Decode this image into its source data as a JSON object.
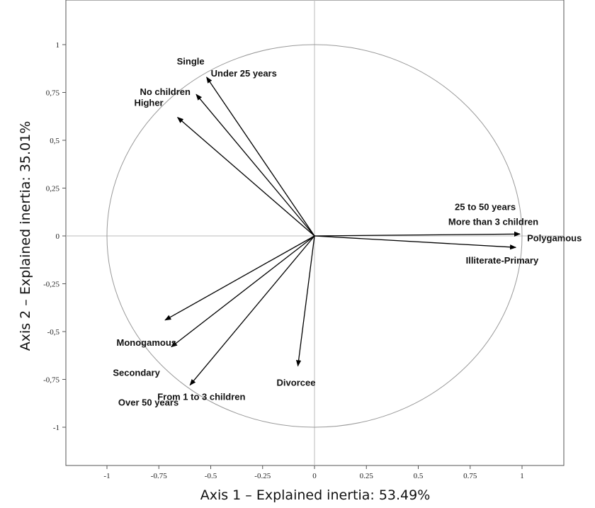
{
  "chart_data": {
    "type": "scatter",
    "subtype": "correlation-circle",
    "title": "",
    "xlabel": "Axis 1 – Explained inertia: 53.49%",
    "ylabel": "Axis 2 – Explained inertia: 35.01%",
    "xlim": [
      -1.2,
      1.2
    ],
    "ylim": [
      -1.2,
      1.2
    ],
    "x_ticks": [
      "-1",
      "-0.75",
      "-0.5",
      "-0.25",
      "0",
      "0.25",
      "0.5",
      "0.75",
      "1"
    ],
    "y_ticks": [
      "1",
      "0,75",
      "0,5",
      "0,25",
      "0",
      "-0,25",
      "-0,5",
      "-0,75",
      "-1"
    ],
    "unit_circle": true,
    "grid": false,
    "vectors": [
      {
        "label": "Single",
        "x": -0.52,
        "y": 0.83
      },
      {
        "label": "Under 25 years",
        "x": -0.52,
        "y": 0.83
      },
      {
        "label": "No children",
        "x": -0.57,
        "y": 0.74
      },
      {
        "label": "Higher",
        "x": -0.66,
        "y": 0.62
      },
      {
        "label": "25 to 50 years",
        "x": 0.99,
        "y": 0.01
      },
      {
        "label": "More than 3 children",
        "x": 0.99,
        "y": 0.01
      },
      {
        "label": "Polygamous",
        "x": 0.99,
        "y": 0.01
      },
      {
        "label": "Illiterate-Primary",
        "x": 0.97,
        "y": -0.06
      },
      {
        "label": "Monogamous",
        "x": -0.72,
        "y": -0.44
      },
      {
        "label": "Secondary",
        "x": -0.69,
        "y": -0.58
      },
      {
        "label": "Over 50 years",
        "x": -0.6,
        "y": -0.78
      },
      {
        "label": "From 1 to 3 children",
        "x": -0.6,
        "y": -0.78
      },
      {
        "label": "Divorcee",
        "x": -0.08,
        "y": -0.68
      }
    ]
  }
}
